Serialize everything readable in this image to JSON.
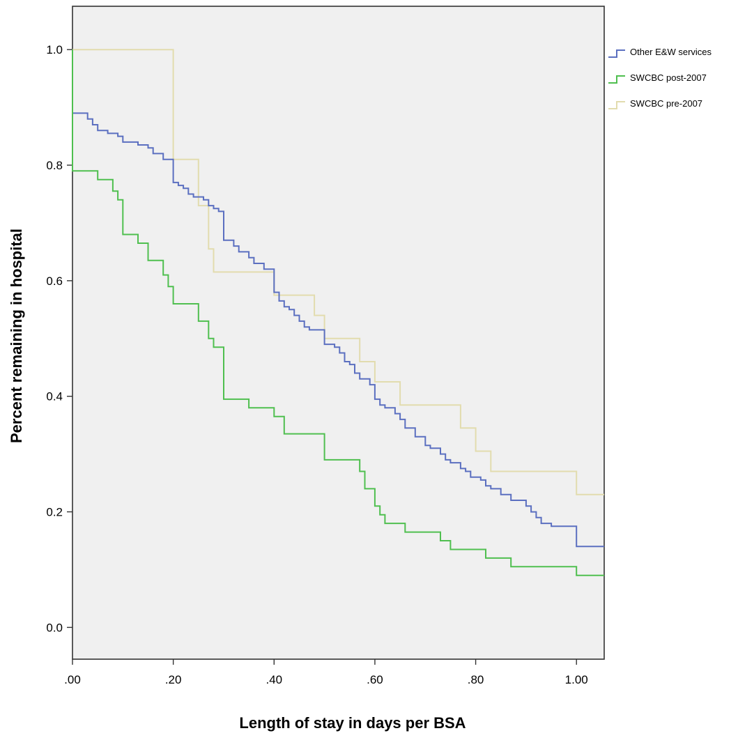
{
  "chart_data": {
    "type": "line",
    "step": true,
    "xlabel": "Length of stay in days per BSA",
    "ylabel": "Percent remaining in hospital",
    "xlim": [
      0.0,
      1.055
    ],
    "ylim": [
      -0.055,
      1.075
    ],
    "x_ticks": [
      0.0,
      0.2,
      0.4,
      0.6,
      0.8,
      1.0
    ],
    "x_tick_labels": [
      ".00",
      ".20",
      ".40",
      ".60",
      ".80",
      "1.00"
    ],
    "y_ticks": [
      0.0,
      0.2,
      0.4,
      0.6,
      0.8,
      1.0
    ],
    "y_tick_labels": [
      "0.0",
      "0.2",
      "0.4",
      "0.6",
      "0.8",
      "1.0"
    ],
    "grid": false,
    "legend_position": "right",
    "plot_background": "#f0f0f0",
    "series": [
      {
        "name": "Other E&W services",
        "color": "#5b6fc0",
        "points": [
          [
            0.0,
            1.0
          ],
          [
            0.0,
            0.89
          ],
          [
            0.01,
            0.89
          ],
          [
            0.02,
            0.89
          ],
          [
            0.03,
            0.88
          ],
          [
            0.04,
            0.87
          ],
          [
            0.05,
            0.86
          ],
          [
            0.07,
            0.855
          ],
          [
            0.09,
            0.85
          ],
          [
            0.1,
            0.84
          ],
          [
            0.13,
            0.835
          ],
          [
            0.15,
            0.83
          ],
          [
            0.16,
            0.82
          ],
          [
            0.18,
            0.81
          ],
          [
            0.2,
            0.805
          ],
          [
            0.2,
            0.77
          ],
          [
            0.21,
            0.765
          ],
          [
            0.22,
            0.76
          ],
          [
            0.23,
            0.75
          ],
          [
            0.24,
            0.745
          ],
          [
            0.26,
            0.74
          ],
          [
            0.27,
            0.73
          ],
          [
            0.28,
            0.725
          ],
          [
            0.29,
            0.72
          ],
          [
            0.3,
            0.7
          ],
          [
            0.3,
            0.67
          ],
          [
            0.32,
            0.66
          ],
          [
            0.33,
            0.65
          ],
          [
            0.35,
            0.64
          ],
          [
            0.36,
            0.63
          ],
          [
            0.38,
            0.62
          ],
          [
            0.4,
            0.61
          ],
          [
            0.4,
            0.58
          ],
          [
            0.41,
            0.565
          ],
          [
            0.42,
            0.555
          ],
          [
            0.43,
            0.55
          ],
          [
            0.44,
            0.54
          ],
          [
            0.45,
            0.53
          ],
          [
            0.46,
            0.52
          ],
          [
            0.47,
            0.515
          ],
          [
            0.5,
            0.49
          ],
          [
            0.52,
            0.485
          ],
          [
            0.53,
            0.475
          ],
          [
            0.54,
            0.46
          ],
          [
            0.55,
            0.455
          ],
          [
            0.56,
            0.44
          ],
          [
            0.57,
            0.43
          ],
          [
            0.59,
            0.42
          ],
          [
            0.6,
            0.395
          ],
          [
            0.61,
            0.385
          ],
          [
            0.62,
            0.38
          ],
          [
            0.64,
            0.37
          ],
          [
            0.65,
            0.36
          ],
          [
            0.66,
            0.345
          ],
          [
            0.68,
            0.33
          ],
          [
            0.7,
            0.315
          ],
          [
            0.71,
            0.31
          ],
          [
            0.73,
            0.3
          ],
          [
            0.74,
            0.29
          ],
          [
            0.75,
            0.285
          ],
          [
            0.77,
            0.275
          ],
          [
            0.78,
            0.27
          ],
          [
            0.79,
            0.26
          ],
          [
            0.81,
            0.255
          ],
          [
            0.82,
            0.245
          ],
          [
            0.83,
            0.24
          ],
          [
            0.85,
            0.23
          ],
          [
            0.87,
            0.22
          ],
          [
            0.9,
            0.21
          ],
          [
            0.91,
            0.2
          ],
          [
            0.92,
            0.19
          ],
          [
            0.93,
            0.18
          ],
          [
            0.95,
            0.175
          ],
          [
            0.98,
            0.175
          ],
          [
            1.0,
            0.14
          ],
          [
            1.055,
            0.14
          ]
        ]
      },
      {
        "name": "SWCBC post-2007",
        "color": "#4fbf4f",
        "points": [
          [
            0.0,
            1.0
          ],
          [
            0.0,
            0.79
          ],
          [
            0.05,
            0.79
          ],
          [
            0.05,
            0.775
          ],
          [
            0.08,
            0.775
          ],
          [
            0.08,
            0.755
          ],
          [
            0.09,
            0.755
          ],
          [
            0.09,
            0.74
          ],
          [
            0.1,
            0.74
          ],
          [
            0.1,
            0.68
          ],
          [
            0.13,
            0.68
          ],
          [
            0.13,
            0.665
          ],
          [
            0.15,
            0.665
          ],
          [
            0.15,
            0.635
          ],
          [
            0.18,
            0.635
          ],
          [
            0.18,
            0.61
          ],
          [
            0.19,
            0.61
          ],
          [
            0.19,
            0.59
          ],
          [
            0.2,
            0.59
          ],
          [
            0.2,
            0.56
          ],
          [
            0.25,
            0.56
          ],
          [
            0.25,
            0.53
          ],
          [
            0.27,
            0.53
          ],
          [
            0.27,
            0.5
          ],
          [
            0.28,
            0.5
          ],
          [
            0.28,
            0.485
          ],
          [
            0.3,
            0.485
          ],
          [
            0.3,
            0.395
          ],
          [
            0.35,
            0.395
          ],
          [
            0.35,
            0.38
          ],
          [
            0.4,
            0.38
          ],
          [
            0.4,
            0.365
          ],
          [
            0.42,
            0.365
          ],
          [
            0.42,
            0.335
          ],
          [
            0.5,
            0.335
          ],
          [
            0.5,
            0.29
          ],
          [
            0.57,
            0.29
          ],
          [
            0.57,
            0.27
          ],
          [
            0.58,
            0.27
          ],
          [
            0.58,
            0.24
          ],
          [
            0.6,
            0.24
          ],
          [
            0.6,
            0.21
          ],
          [
            0.61,
            0.21
          ],
          [
            0.61,
            0.195
          ],
          [
            0.62,
            0.195
          ],
          [
            0.62,
            0.18
          ],
          [
            0.66,
            0.18
          ],
          [
            0.66,
            0.165
          ],
          [
            0.73,
            0.165
          ],
          [
            0.73,
            0.15
          ],
          [
            0.75,
            0.15
          ],
          [
            0.75,
            0.135
          ],
          [
            0.82,
            0.135
          ],
          [
            0.82,
            0.12
          ],
          [
            0.87,
            0.12
          ],
          [
            0.87,
            0.105
          ],
          [
            1.0,
            0.105
          ],
          [
            1.0,
            0.09
          ],
          [
            1.055,
            0.09
          ]
        ]
      },
      {
        "name": "SWCBC pre-2007",
        "color": "#e2dcae",
        "points": [
          [
            0.0,
            1.0
          ],
          [
            0.2,
            1.0
          ],
          [
            0.2,
            0.81
          ],
          [
            0.25,
            0.81
          ],
          [
            0.25,
            0.73
          ],
          [
            0.27,
            0.73
          ],
          [
            0.27,
            0.655
          ],
          [
            0.28,
            0.655
          ],
          [
            0.28,
            0.615
          ],
          [
            0.4,
            0.615
          ],
          [
            0.4,
            0.575
          ],
          [
            0.48,
            0.575
          ],
          [
            0.48,
            0.54
          ],
          [
            0.5,
            0.54
          ],
          [
            0.5,
            0.5
          ],
          [
            0.57,
            0.5
          ],
          [
            0.57,
            0.46
          ],
          [
            0.6,
            0.46
          ],
          [
            0.6,
            0.425
          ],
          [
            0.65,
            0.425
          ],
          [
            0.65,
            0.385
          ],
          [
            0.77,
            0.385
          ],
          [
            0.77,
            0.345
          ],
          [
            0.8,
            0.345
          ],
          [
            0.8,
            0.305
          ],
          [
            0.83,
            0.305
          ],
          [
            0.83,
            0.27
          ],
          [
            1.0,
            0.27
          ],
          [
            1.0,
            0.23
          ],
          [
            1.055,
            0.23
          ]
        ]
      }
    ]
  }
}
